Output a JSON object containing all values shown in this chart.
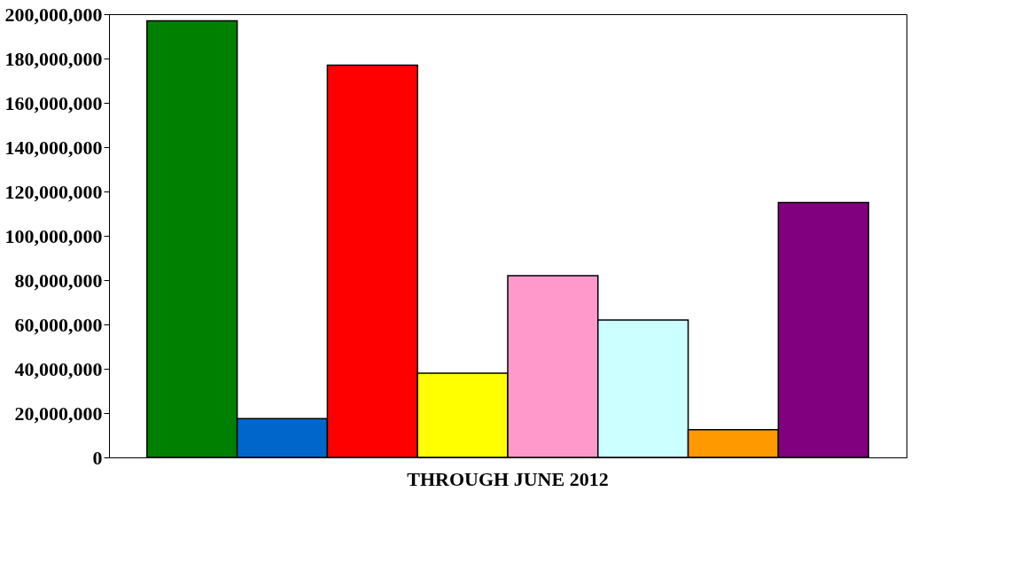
{
  "chart_data": {
    "type": "bar",
    "categories": [
      "THROUGH  JUNE  2012"
    ],
    "series": [
      {
        "color": "#008000",
        "values": [
          197000000
        ]
      },
      {
        "color": "#0066cc",
        "values": [
          17500000
        ]
      },
      {
        "color": "#ff0000",
        "values": [
          177000000
        ]
      },
      {
        "color": "#ffff00",
        "values": [
          38000000
        ]
      },
      {
        "color": "#ff99cc",
        "values": [
          82000000
        ]
      },
      {
        "color": "#ccffff",
        "values": [
          62000000
        ]
      },
      {
        "color": "#ff9900",
        "values": [
          12500000
        ]
      },
      {
        "color": "#800080",
        "values": [
          115000000
        ]
      }
    ],
    "ylim": [
      0,
      200000000
    ],
    "yticks": [
      0,
      {
        "value": 20000000,
        "label": "20,000,000"
      },
      {
        "value": 40000000,
        "label": "40,000,000"
      },
      {
        "value": 60000000,
        "label": "60,000,000"
      },
      {
        "value": 80000000,
        "label": "80,000,000"
      },
      {
        "value": 100000000,
        "label": "100,000,000"
      },
      {
        "value": 120000000,
        "label": "120,000,000"
      },
      {
        "value": 140000000,
        "label": "140,000,000"
      },
      {
        "value": 160000000,
        "label": "160,000,000"
      },
      {
        "value": 180000000,
        "label": "180,000,000"
      },
      {
        "value": 200000000,
        "label": "200,000,000"
      }
    ],
    "grid": false,
    "legend": false
  }
}
